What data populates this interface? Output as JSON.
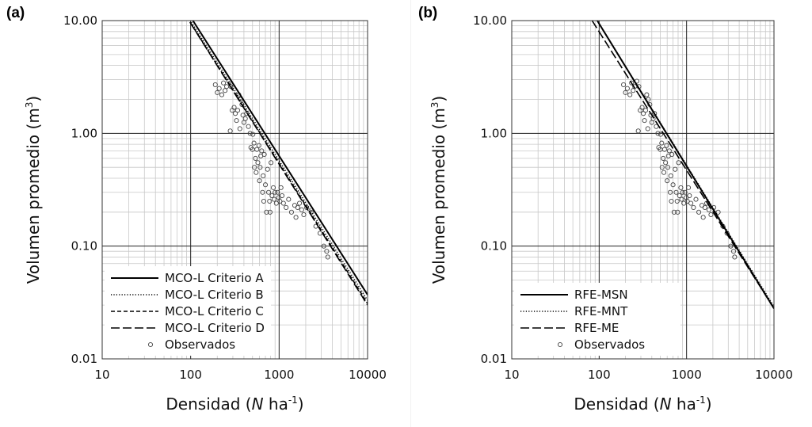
{
  "chart_data": [
    {
      "type": "line",
      "panel_label": "(a)",
      "xlabel": "Densidad (N ha-1)",
      "xlabel_parts": {
        "pre": "Densidad (",
        "italic": "N",
        "mid": " ha",
        "sup": "-1",
        "post": ")"
      },
      "ylabel": "Volumen promedio (m3)",
      "ylabel_parts": {
        "pre": "Volumen promedio (m",
        "sup": "3",
        "post": ")"
      },
      "xscale": "log",
      "yscale": "log",
      "xlim": [
        10,
        10000
      ],
      "ylim": [
        0.01,
        10
      ],
      "xticks": [
        "10",
        "100",
        "1000",
        "10000"
      ],
      "yticks": [
        "0.01",
        "0.10",
        "1.00",
        "10.00"
      ],
      "grid": true,
      "legend_position": "bottom-left",
      "series": [
        {
          "name": "MCO-L Criterio A",
          "style": "solid",
          "x": [
            106,
            10000
          ],
          "y": [
            10.0,
            0.037
          ]
        },
        {
          "name": "MCO-L Criterio B",
          "style": "dotted",
          "x": [
            102,
            10000
          ],
          "y": [
            9.7,
            0.033
          ]
        },
        {
          "name": "MCO-L Criterio C",
          "style": "dashed",
          "x": [
            100,
            10000
          ],
          "y": [
            9.5,
            0.031
          ]
        },
        {
          "name": "MCO-L Criterio D",
          "style": "longdash",
          "x": [
            98,
            10000
          ],
          "y": [
            9.7,
            0.03
          ]
        }
      ],
      "observed": {
        "name": "Observados",
        "points": [
          [
            190,
            2.7
          ],
          [
            200,
            2.3
          ],
          [
            210,
            2.5
          ],
          [
            225,
            2.2
          ],
          [
            235,
            2.8
          ],
          [
            245,
            2.4
          ],
          [
            255,
            2.6
          ],
          [
            270,
            2.9
          ],
          [
            285,
            2.6
          ],
          [
            280,
            1.05
          ],
          [
            295,
            1.6
          ],
          [
            310,
            1.7
          ],
          [
            320,
            1.5
          ],
          [
            330,
            1.3
          ],
          [
            340,
            1.6
          ],
          [
            350,
            2.2
          ],
          [
            360,
            1.1
          ],
          [
            365,
            2.0
          ],
          [
            380,
            1.8
          ],
          [
            390,
            1.45
          ],
          [
            400,
            1.25
          ],
          [
            415,
            1.35
          ],
          [
            430,
            1.5
          ],
          [
            450,
            1.15
          ],
          [
            470,
            1.0
          ],
          [
            480,
            0.75
          ],
          [
            500,
            0.72
          ],
          [
            505,
            0.98
          ],
          [
            520,
            0.82
          ],
          [
            525,
            0.5
          ],
          [
            540,
            0.6
          ],
          [
            550,
            0.45
          ],
          [
            560,
            0.72
          ],
          [
            575,
            0.55
          ],
          [
            590,
            0.78
          ],
          [
            600,
            0.38
          ],
          [
            610,
            0.5
          ],
          [
            620,
            0.63
          ],
          [
            635,
            0.7
          ],
          [
            650,
            0.3
          ],
          [
            660,
            0.42
          ],
          [
            670,
            0.25
          ],
          [
            680,
            0.65
          ],
          [
            700,
            0.35
          ],
          [
            720,
            0.2
          ],
          [
            740,
            0.48
          ],
          [
            760,
            0.3
          ],
          [
            780,
            0.25
          ],
          [
            790,
            0.2
          ],
          [
            810,
            0.55
          ],
          [
            830,
            0.28
          ],
          [
            860,
            0.33
          ],
          [
            880,
            0.26
          ],
          [
            900,
            0.3
          ],
          [
            930,
            0.24
          ],
          [
            960,
            0.3
          ],
          [
            990,
            0.27
          ],
          [
            1020,
            0.25
          ],
          [
            1050,
            0.33
          ],
          [
            1080,
            0.28
          ],
          [
            1120,
            0.24
          ],
          [
            1200,
            0.22
          ],
          [
            1280,
            0.26
          ],
          [
            1380,
            0.2
          ],
          [
            1500,
            0.23
          ],
          [
            1550,
            0.18
          ],
          [
            1620,
            0.22
          ],
          [
            1700,
            0.24
          ],
          [
            1800,
            0.21
          ],
          [
            1900,
            0.19
          ],
          [
            2050,
            0.22
          ],
          [
            2300,
            0.2
          ],
          [
            2600,
            0.15
          ],
          [
            2900,
            0.13
          ],
          [
            3200,
            0.1
          ],
          [
            3450,
            0.09
          ],
          [
            3550,
            0.08
          ]
        ]
      }
    },
    {
      "type": "line",
      "panel_label": "(b)",
      "xlabel": "Densidad (N ha-1)",
      "xlabel_parts": {
        "pre": "Densidad (",
        "italic": "N",
        "mid": " ha",
        "sup": "-1",
        "post": ")"
      },
      "ylabel": "Volumen promedio (m3)",
      "ylabel_parts": {
        "pre": "Volumen promedio (m",
        "sup": "3",
        "post": ")"
      },
      "xscale": "log",
      "yscale": "log",
      "xlim": [
        10,
        10000
      ],
      "ylim": [
        0.01,
        10
      ],
      "xticks": [
        "10",
        "100",
        "1000",
        "10000"
      ],
      "yticks": [
        "0.01",
        "0.10",
        "1.00",
        "10.00"
      ],
      "grid": true,
      "legend_position": "bottom-left",
      "series": [
        {
          "name": "RFE-MSN",
          "style": "solid",
          "x": [
            95,
            10000
          ],
          "y": [
            10.0,
            0.028
          ]
        },
        {
          "name": "RFE-MNT",
          "style": "dotted",
          "x": [
            95,
            10000
          ],
          "y": [
            10.0,
            0.029
          ]
        },
        {
          "name": "RFE-ME",
          "style": "longdash",
          "x": [
            83,
            10000
          ],
          "y": [
            10.0,
            0.028
          ]
        }
      ],
      "observed": {
        "name": "Observados",
        "points": [
          [
            190,
            2.7
          ],
          [
            200,
            2.3
          ],
          [
            210,
            2.5
          ],
          [
            225,
            2.2
          ],
          [
            235,
            2.8
          ],
          [
            245,
            2.4
          ],
          [
            255,
            2.6
          ],
          [
            270,
            2.9
          ],
          [
            285,
            2.6
          ],
          [
            280,
            1.05
          ],
          [
            295,
            1.6
          ],
          [
            310,
            1.7
          ],
          [
            320,
            1.5
          ],
          [
            330,
            1.3
          ],
          [
            340,
            1.6
          ],
          [
            350,
            2.2
          ],
          [
            360,
            1.1
          ],
          [
            365,
            2.0
          ],
          [
            380,
            1.8
          ],
          [
            390,
            1.45
          ],
          [
            400,
            1.25
          ],
          [
            415,
            1.35
          ],
          [
            430,
            1.5
          ],
          [
            450,
            1.15
          ],
          [
            470,
            1.0
          ],
          [
            480,
            0.75
          ],
          [
            500,
            0.72
          ],
          [
            505,
            0.98
          ],
          [
            520,
            0.82
          ],
          [
            525,
            0.5
          ],
          [
            540,
            0.6
          ],
          [
            550,
            0.45
          ],
          [
            560,
            0.72
          ],
          [
            575,
            0.55
          ],
          [
            590,
            0.78
          ],
          [
            600,
            0.38
          ],
          [
            610,
            0.5
          ],
          [
            620,
            0.63
          ],
          [
            635,
            0.7
          ],
          [
            650,
            0.3
          ],
          [
            660,
            0.42
          ],
          [
            670,
            0.25
          ],
          [
            680,
            0.65
          ],
          [
            700,
            0.35
          ],
          [
            720,
            0.2
          ],
          [
            740,
            0.48
          ],
          [
            760,
            0.3
          ],
          [
            780,
            0.25
          ],
          [
            790,
            0.2
          ],
          [
            810,
            0.55
          ],
          [
            830,
            0.28
          ],
          [
            860,
            0.33
          ],
          [
            880,
            0.26
          ],
          [
            900,
            0.3
          ],
          [
            930,
            0.24
          ],
          [
            960,
            0.3
          ],
          [
            990,
            0.27
          ],
          [
            1020,
            0.25
          ],
          [
            1050,
            0.33
          ],
          [
            1080,
            0.28
          ],
          [
            1120,
            0.24
          ],
          [
            1200,
            0.22
          ],
          [
            1280,
            0.26
          ],
          [
            1380,
            0.2
          ],
          [
            1500,
            0.23
          ],
          [
            1550,
            0.18
          ],
          [
            1620,
            0.22
          ],
          [
            1700,
            0.24
          ],
          [
            1800,
            0.21
          ],
          [
            1900,
            0.19
          ],
          [
            2050,
            0.22
          ],
          [
            2300,
            0.2
          ],
          [
            2600,
            0.15
          ],
          [
            2900,
            0.13
          ],
          [
            3200,
            0.1
          ],
          [
            3450,
            0.09
          ],
          [
            3550,
            0.08
          ]
        ]
      }
    }
  ]
}
